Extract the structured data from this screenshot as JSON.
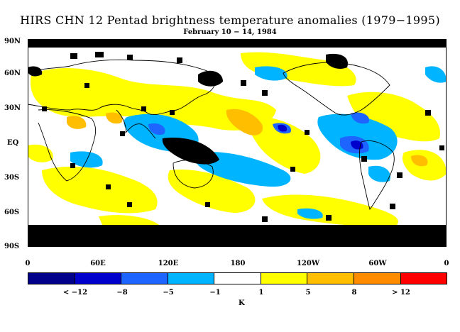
{
  "title": "HIRS CHN 12 Pentad brightness temperature anomalies (1979−1995)",
  "subtitle": "February 10 − 14, 1984",
  "lat_labels": [
    "90N",
    "60N",
    "30N",
    "EQ",
    "30S",
    "60S",
    "90S"
  ],
  "lon_labels": [
    "0",
    "60E",
    "120E",
    "180",
    "120W",
    "60W",
    "0"
  ],
  "colorbar": {
    "colors": [
      "#00008b",
      "#0000cd",
      "#1e64ff",
      "#00b4ff",
      "#ffffff",
      "#ffff00",
      "#ffbe00",
      "#ff8c00",
      "#ff0000"
    ],
    "labels": [
      "< −12",
      "−8",
      "−5",
      "−1",
      "1",
      "5",
      "8",
      "> 12"
    ],
    "unit": "K"
  },
  "colors": {
    "missing": "#000000",
    "coast": "#000000",
    "cold1": "#00b4ff",
    "cold2": "#1e64ff",
    "cold3": "#0000cd",
    "warm1": "#ffff00",
    "warm2": "#ffbe00"
  }
}
